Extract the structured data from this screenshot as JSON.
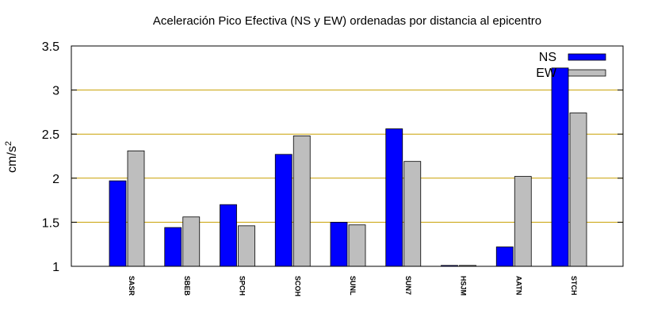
{
  "chart_data": {
    "type": "bar",
    "title": "Aceleración Pico Efectiva (NS y EW) ordenadas por distancia al epicentro",
    "xlabel": "",
    "ylabel": "cm/s",
    "ylabel_sup": "2",
    "categories": [
      "SASR",
      "SBEB",
      "SPCH",
      "SCOH",
      "SUNL",
      "SUN7",
      "HSJM",
      "AATN",
      "STCH"
    ],
    "series": [
      {
        "name": "NS",
        "values": [
          1.97,
          1.44,
          1.7,
          2.27,
          1.5,
          2.56,
          1.01,
          1.22,
          3.25
        ],
        "color": "#0000ff"
      },
      {
        "name": "EW",
        "values": [
          2.31,
          1.56,
          1.46,
          2.48,
          1.47,
          2.19,
          1.01,
          2.02,
          2.74
        ],
        "color": "#bebebe"
      }
    ],
    "ylim": [
      1,
      3.5
    ],
    "yticks": [
      "1",
      "1.5",
      "2",
      "2.5",
      "3",
      "3.5"
    ],
    "grid": true,
    "grid_color": "#c8a000",
    "legend_position": "top-right"
  }
}
